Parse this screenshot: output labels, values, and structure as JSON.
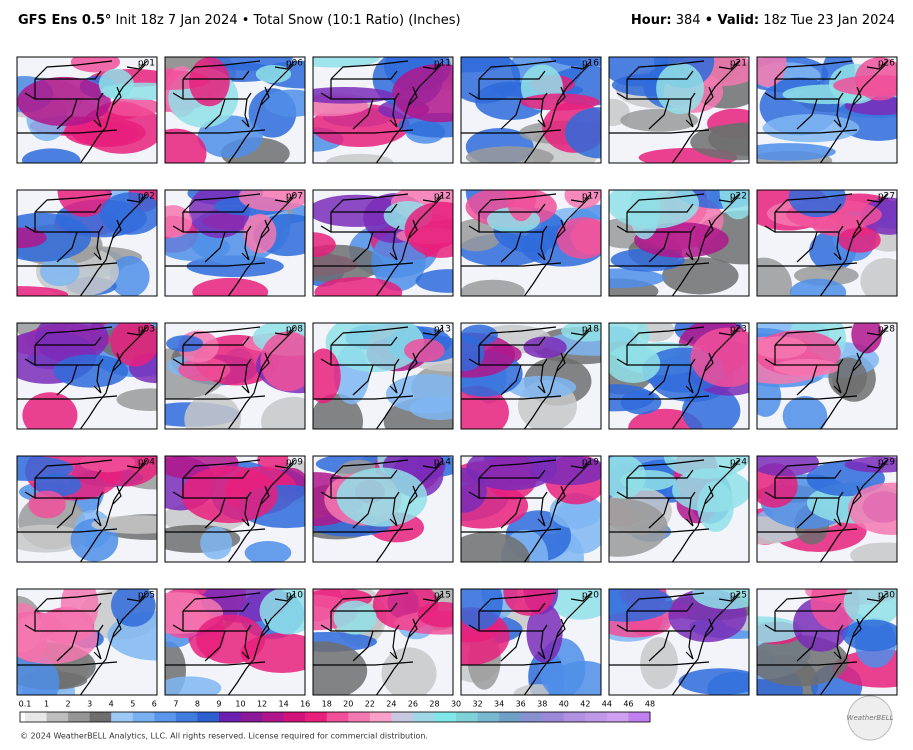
{
  "header": {
    "model": "GFS Ens 0.5°",
    "init": "Init 18z 7 Jan 2024",
    "product": "• Total Snow (10:1 Ratio) (Inches)",
    "hour_label": "Hour:",
    "hour": "384",
    "valid_label": "• Valid:",
    "valid": "18z Tue 23 Jan 2024"
  },
  "panels": [
    "p01",
    "p06",
    "p11",
    "p16",
    "p21",
    "p26",
    "p02",
    "p07",
    "p12",
    "p17",
    "p22",
    "p27",
    "p03",
    "p08",
    "p13",
    "p18",
    "p23",
    "p28",
    "p04",
    "p09",
    "p14",
    "p19",
    "p24",
    "p29",
    "p05",
    "p10",
    "p15",
    "p20",
    "p25",
    "p30"
  ],
  "colorbar": {
    "labels": [
      0.1,
      1,
      2,
      3,
      4,
      5,
      6,
      7,
      8,
      9,
      10,
      12,
      14,
      16,
      18,
      20,
      22,
      24,
      26,
      28,
      30,
      32,
      34,
      36,
      38,
      40,
      42,
      44,
      46,
      48
    ]
  },
  "footer": {
    "copyright": "© 2024 WeatherBELL Analytics, LLC. All rights reserved. License required for commercial distribution.",
    "logo": "WeatherBELL"
  }
}
